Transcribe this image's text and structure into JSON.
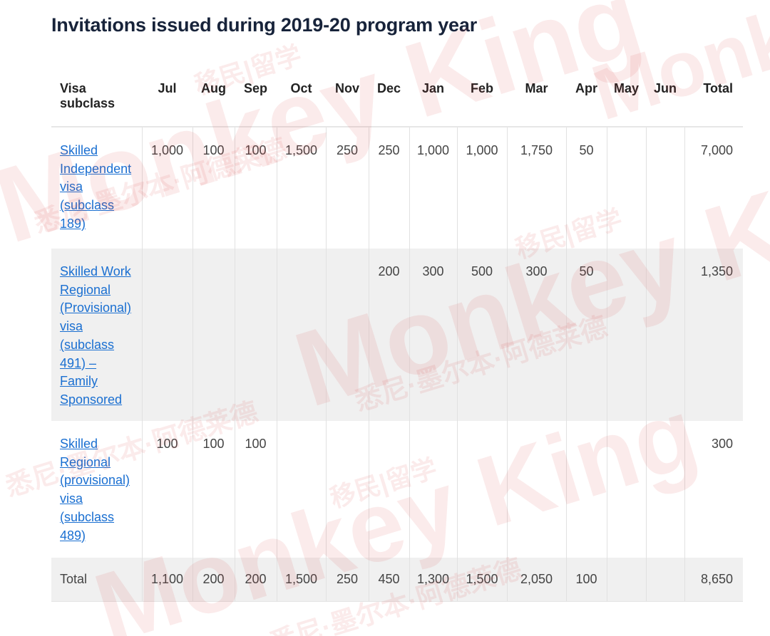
{
  "title": "Invitations issued during 2019-20 program year",
  "table": {
    "headers": [
      "Visa subclass",
      "Jul",
      "Aug",
      "Sep",
      "Oct",
      "Nov",
      "Dec",
      "Jan",
      "Feb",
      "Mar",
      "Apr",
      "May",
      "Jun",
      "Total"
    ],
    "rows": [
      {
        "label": "Skilled Independent visa (subclass 189)",
        "values": [
          "1,000",
          "100",
          "100",
          "1,500",
          "250",
          "250",
          "1,000",
          "1,000",
          "1,750",
          "50",
          "",
          "",
          "7,000"
        ]
      },
      {
        "label": "Skilled Work Regional (Provisional) visa (subclass 491) – Family Sponsored",
        "values": [
          "",
          "",
          "",
          "",
          "",
          "200",
          "300",
          "500",
          "300",
          "50",
          "",
          "",
          "1,350"
        ]
      },
      {
        "label": "Skilled Regional (provisional) visa (subclass 489)",
        "values": [
          "100",
          "100",
          "100",
          "",
          "",
          "",
          "",
          "",
          "",
          "",
          "",
          "",
          "300"
        ]
      }
    ],
    "total_row": {
      "label": "Total",
      "values": [
        "1,100",
        "200",
        "200",
        "1,500",
        "250",
        "450",
        "1,300",
        "1,500",
        "2,050",
        "100",
        "",
        "",
        "8,650"
      ]
    }
  },
  "watermark": {
    "brand": "Monkey King",
    "cn_top": "移民|留学",
    "cn_bottom": "悉尼·墨尔本·阿德莱德"
  },
  "colors": {
    "title": "#17233a",
    "link": "#1a6fd1",
    "row_alt_bg": "#f0f0f0",
    "watermark": "#dc3c3c"
  }
}
